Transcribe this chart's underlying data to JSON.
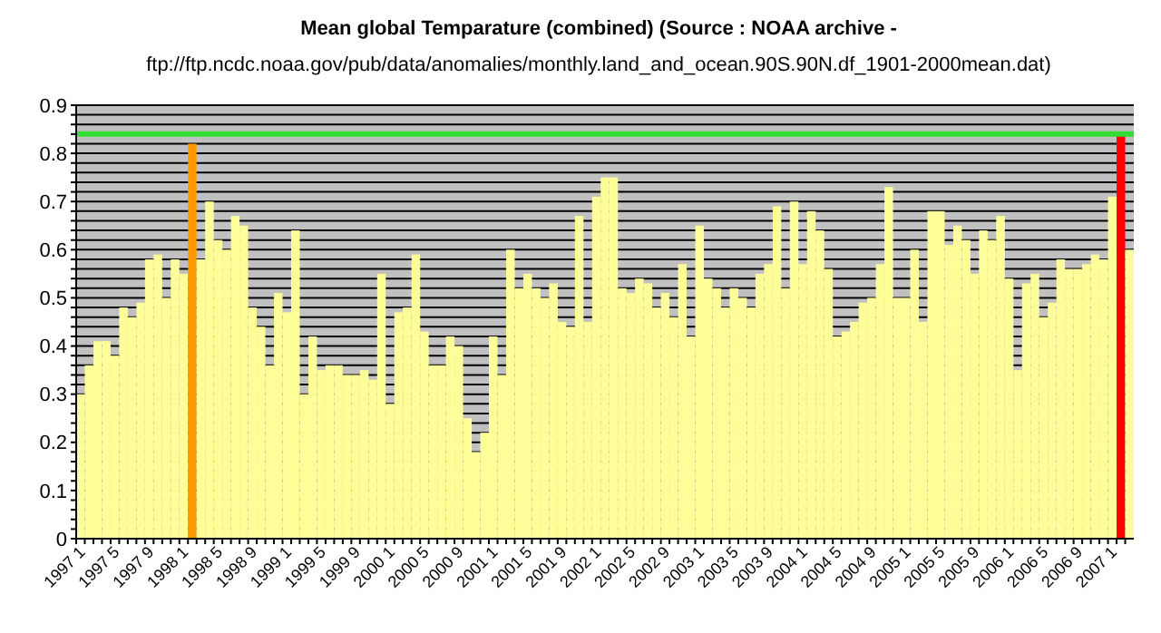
{
  "chart_data": {
    "type": "bar",
    "title": "Mean global Temparature (combined) (Source : NOAA archive -",
    "subtitle": "ftp://ftp.ncdc.noaa.gov/pub/data/anomalies/monthly.land_and_ocean.90S.90N.df_1901-2000mean.dat)",
    "categories": [
      "1997 1",
      null,
      null,
      null,
      "1997 5",
      null,
      null,
      null,
      "1997 9",
      null,
      null,
      null,
      "1998 1",
      null,
      null,
      null,
      "1998 5",
      null,
      null,
      null,
      "1998 9",
      null,
      null,
      null,
      "1999 1",
      null,
      null,
      null,
      "1999 5",
      null,
      null,
      null,
      "1999 9",
      null,
      null,
      null,
      "2000 1",
      null,
      null,
      null,
      "2000 5",
      null,
      null,
      null,
      "2000 9",
      null,
      null,
      null,
      "2001 1",
      null,
      null,
      null,
      "2001 5",
      null,
      null,
      null,
      "2001 9",
      null,
      null,
      null,
      "2002 1",
      null,
      null,
      null,
      "2002 5",
      null,
      null,
      null,
      "2002 9",
      null,
      null,
      null,
      "2003 1",
      null,
      null,
      null,
      "2003 5",
      null,
      null,
      null,
      "2003 9",
      null,
      null,
      null,
      "2004 1",
      null,
      null,
      null,
      "2004 5",
      null,
      null,
      null,
      "2004 9",
      null,
      null,
      null,
      "2005 1",
      null,
      null,
      null,
      "2005 5",
      null,
      null,
      null,
      "2005 9",
      null,
      null,
      null,
      "2006 1",
      null,
      null,
      null,
      "2006 5",
      null,
      null,
      null,
      "2006 9",
      null,
      null,
      null,
      "2007 1",
      null,
      null
    ],
    "values": [
      0.3,
      0.36,
      0.41,
      0.41,
      0.38,
      0.48,
      0.46,
      0.49,
      0.58,
      0.59,
      0.5,
      0.58,
      0.55,
      0.82,
      0.58,
      0.7,
      0.62,
      0.6,
      0.67,
      0.65,
      0.48,
      0.44,
      0.36,
      0.51,
      0.47,
      0.64,
      0.3,
      0.42,
      0.35,
      0.36,
      0.36,
      0.34,
      0.34,
      0.35,
      0.33,
      0.55,
      0.28,
      0.47,
      0.48,
      0.59,
      0.43,
      0.36,
      0.36,
      0.42,
      0.4,
      0.25,
      0.18,
      0.22,
      0.42,
      0.34,
      0.6,
      0.52,
      0.55,
      0.52,
      0.5,
      0.53,
      0.45,
      0.44,
      0.67,
      0.45,
      0.71,
      0.75,
      0.75,
      0.52,
      0.51,
      0.54,
      0.53,
      0.48,
      0.51,
      0.46,
      0.57,
      0.42,
      0.65,
      0.54,
      0.52,
      0.48,
      0.52,
      0.5,
      0.48,
      0.55,
      0.57,
      0.69,
      0.52,
      0.7,
      0.57,
      0.68,
      0.64,
      0.56,
      0.42,
      0.43,
      0.45,
      0.49,
      0.5,
      0.57,
      0.73,
      0.5,
      0.5,
      0.6,
      0.45,
      0.68,
      0.68,
      0.61,
      0.65,
      0.62,
      0.55,
      0.64,
      0.62,
      0.67,
      0.54,
      0.35,
      0.53,
      0.55,
      0.46,
      0.49,
      0.58,
      0.56,
      0.56,
      0.57,
      0.59,
      0.58,
      0.71,
      0.84,
      0.6
    ],
    "colors": [
      "#ffff99",
      "#ffff99",
      "#ffff99",
      "#ffff99",
      "#ffff99",
      "#ffff99",
      "#ffff99",
      "#ffff99",
      "#ffff99",
      "#ffff99",
      "#ffff99",
      "#ffff99",
      "#ffff99",
      "#ff9900",
      "#ffff99",
      "#ffff99",
      "#ffff99",
      "#ffff99",
      "#ffff99",
      "#ffff99",
      "#ffff99",
      "#ffff99",
      "#ffff99",
      "#ffff99",
      "#ffff99",
      "#ffff99",
      "#ffff99",
      "#ffff99",
      "#ffff99",
      "#ffff99",
      "#ffff99",
      "#ffff99",
      "#ffff99",
      "#ffff99",
      "#ffff99",
      "#ffff99",
      "#ffff99",
      "#ffff99",
      "#ffff99",
      "#ffff99",
      "#ffff99",
      "#ffff99",
      "#ffff99",
      "#ffff99",
      "#ffff99",
      "#ffff99",
      "#ffff99",
      "#ffff99",
      "#ffff99",
      "#ffff99",
      "#ffff99",
      "#ffff99",
      "#ffff99",
      "#ffff99",
      "#ffff99",
      "#ffff99",
      "#ffff99",
      "#ffff99",
      "#ffff99",
      "#ffff99",
      "#ffff99",
      "#ffff99",
      "#ffff99",
      "#ffff99",
      "#ffff99",
      "#ffff99",
      "#ffff99",
      "#ffff99",
      "#ffff99",
      "#ffff99",
      "#ffff99",
      "#ffff99",
      "#ffff99",
      "#ffff99",
      "#ffff99",
      "#ffff99",
      "#ffff99",
      "#ffff99",
      "#ffff99",
      "#ffff99",
      "#ffff99",
      "#ffff99",
      "#ffff99",
      "#ffff99",
      "#ffff99",
      "#ffff99",
      "#ffff99",
      "#ffff99",
      "#ffff99",
      "#ffff99",
      "#ffff99",
      "#ffff99",
      "#ffff99",
      "#ffff99",
      "#ffff99",
      "#ffff99",
      "#ffff99",
      "#ffff99",
      "#ffff99",
      "#ffff99",
      "#ffff99",
      "#ffff99",
      "#ffff99",
      "#ffff99",
      "#ffff99",
      "#ffff99",
      "#ffff99",
      "#ffff99",
      "#ffff99",
      "#ffff99",
      "#ffff99",
      "#ffff99",
      "#ffff99",
      "#ffff99",
      "#ffff99",
      "#ffff99",
      "#ffff99",
      "#ffff99",
      "#ffff99",
      "#ffff99",
      "#ffff99",
      "#ff0000",
      "#ffff99"
    ],
    "ylim": [
      0,
      0.9
    ],
    "yticks": [
      0,
      {
        "value": 0.02,
        "label": null
      },
      {
        "value": 0.04,
        "label": null
      },
      {
        "value": 0.06,
        "label": null
      },
      {
        "value": 0.08,
        "label": null
      },
      0.1,
      {
        "value": 0.12,
        "label": null
      },
      {
        "value": 0.14,
        "label": null
      },
      {
        "value": 0.16,
        "label": null
      },
      {
        "value": 0.18,
        "label": null
      },
      0.2,
      {
        "value": 0.22,
        "label": null
      },
      {
        "value": 0.24,
        "label": null
      },
      {
        "value": 0.26,
        "label": null
      },
      {
        "value": 0.28,
        "label": null
      },
      0.3,
      {
        "value": 0.32,
        "label": null
      },
      {
        "value": 0.34,
        "label": null
      },
      {
        "value": 0.36,
        "label": null
      },
      {
        "value": 0.38,
        "label": null
      },
      0.4,
      {
        "value": 0.42,
        "label": null
      },
      {
        "value": 0.44,
        "label": null
      },
      {
        "value": 0.46,
        "label": null
      },
      {
        "value": 0.48,
        "label": null
      },
      0.5,
      {
        "value": 0.52,
        "label": null
      },
      {
        "value": 0.54,
        "label": null
      },
      {
        "value": 0.56,
        "label": null
      },
      {
        "value": 0.58,
        "label": null
      },
      0.6,
      {
        "value": 0.62,
        "label": null
      },
      {
        "value": 0.64,
        "label": null
      },
      {
        "value": 0.66,
        "label": null
      },
      {
        "value": 0.68,
        "label": null
      },
      0.7,
      {
        "value": 0.72,
        "label": null
      },
      {
        "value": 0.74,
        "label": null
      },
      {
        "value": 0.76,
        "label": null
      },
      {
        "value": 0.78,
        "label": null
      },
      0.8,
      {
        "value": 0.82,
        "label": null
      },
      {
        "value": 0.84,
        "label": null
      },
      {
        "value": 0.86,
        "label": null
      },
      {
        "value": 0.88,
        "label": null
      },
      0.9
    ],
    "grid": "y",
    "ref_lines": [
      {
        "axis": "y",
        "value": 0.84,
        "color": "#33dd33"
      }
    ]
  }
}
